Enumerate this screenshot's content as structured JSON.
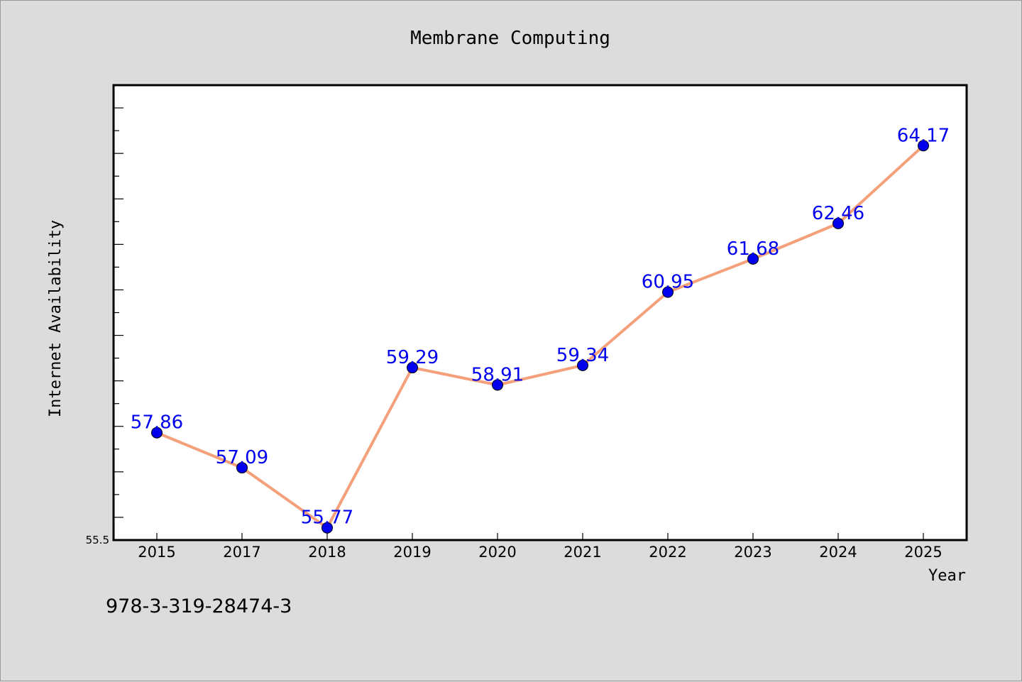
{
  "chart_data": {
    "type": "line",
    "title": "Membrane Computing",
    "xlabel": "Year",
    "ylabel": "Internet Availability",
    "categories": [
      "2015",
      "2017",
      "2018",
      "2019",
      "2020",
      "2021",
      "2022",
      "2023",
      "2024",
      "2025"
    ],
    "series": [
      {
        "values": [
          57.86,
          57.09,
          55.77,
          59.29,
          58.91,
          59.34,
          60.95,
          61.68,
          62.46,
          64.17
        ],
        "data_labels": [
          "57.86",
          "57.09",
          "55.77",
          "59.29",
          "58.91",
          "59.34",
          "60.95",
          "61.68",
          "62.46",
          "64.17"
        ],
        "line_color": "#f4a07a",
        "marker_color": "#0000ee"
      }
    ],
    "ylim": [
      55.5,
      65.5
    ],
    "ytick_labels": [
      "55.5"
    ],
    "grid": false,
    "label_color": "#0000ee"
  },
  "footnote": "978-3-319-28474-3",
  "colors": {
    "background": "#dcdcdc",
    "plot_background": "#ffffff",
    "line": "#f4a07a",
    "marker": "#0000ee",
    "label": "#0000ee"
  }
}
